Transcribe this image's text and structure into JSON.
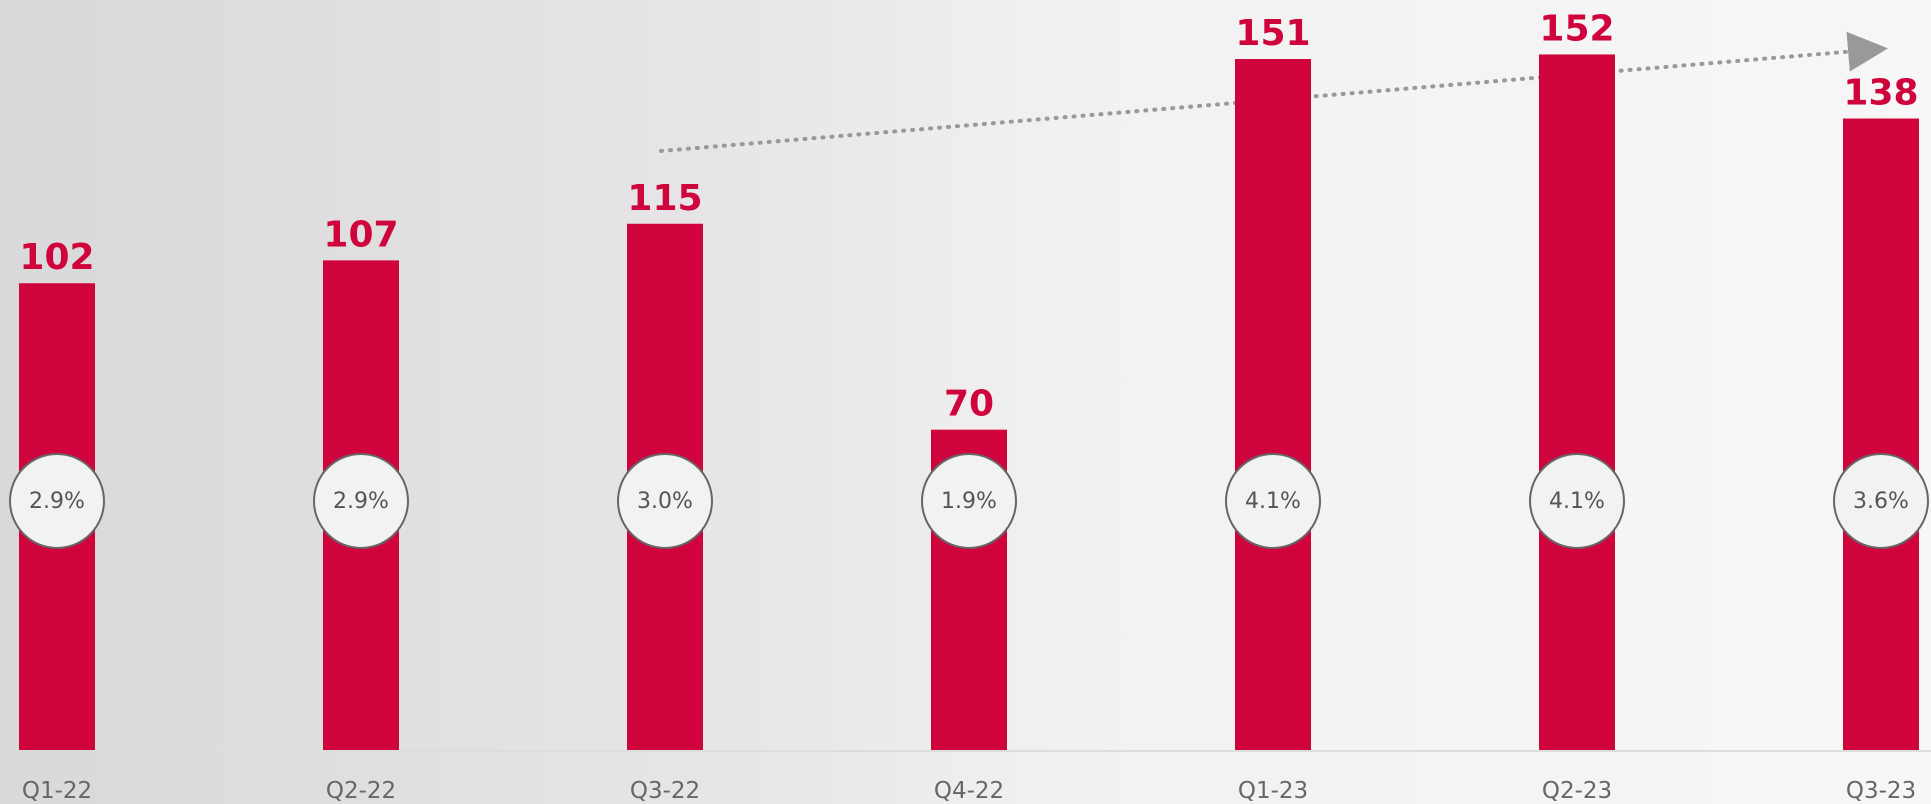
{
  "chart_data": {
    "type": "bar",
    "categories": [
      "Q1-22",
      "Q2-22",
      "Q3-22",
      "Q4-22",
      "Q1-23",
      "Q2-23",
      "Q3-23"
    ],
    "series": [
      {
        "name": null,
        "color": "#d0043c",
        "values": [
          102,
          107,
          115,
          70,
          151,
          152,
          138
        ]
      },
      {
        "name": null,
        "color": "#f2f2f2",
        "values": [
          2.9,
          2.9,
          3.0,
          1.9,
          4.1,
          4.1,
          3.6
        ],
        "value_labels": [
          "2.9%",
          "2.9%",
          "3.0%",
          "1.9%",
          "4.1%",
          "4.1%",
          "3.6%"
        ]
      }
    ]
  }
}
